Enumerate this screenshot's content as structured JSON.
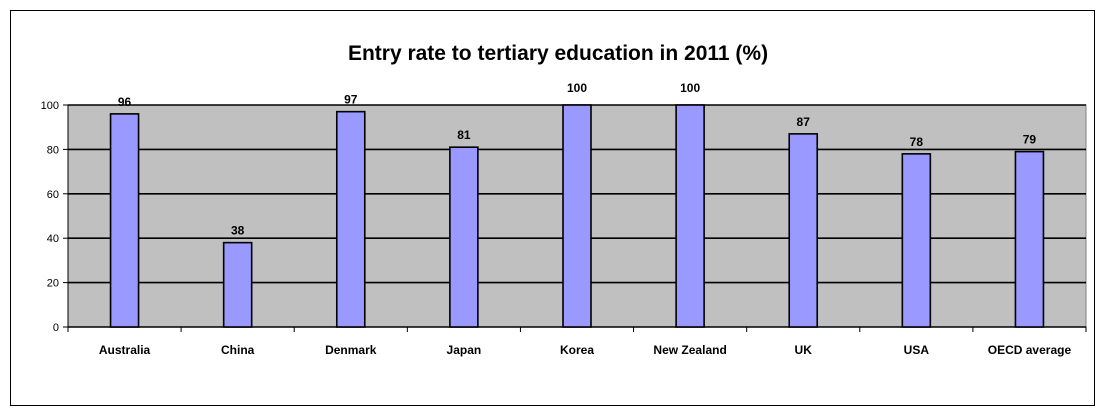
{
  "chart_data": {
    "type": "bar",
    "title": "Entry rate to tertiary education in 2011 (%)",
    "categories": [
      "Australia",
      "China",
      "Denmark",
      "Japan",
      "Korea",
      "New Zealand",
      "UK",
      "USA",
      "OECD average"
    ],
    "values": [
      96,
      38,
      97,
      81,
      100,
      100,
      87,
      78,
      79
    ],
    "data_labels": [
      "96",
      "38",
      "97",
      "81",
      "100",
      "100",
      "87",
      "78",
      "79"
    ],
    "yticks": [
      0,
      20,
      40,
      60,
      80,
      100
    ],
    "ylim": [
      0,
      100
    ],
    "grid": true,
    "legend": false,
    "colors": {
      "bar_fill": "#9999ff",
      "plot_background": "#c0c0c0",
      "grid": "#000000",
      "bar_stroke": "#000000"
    }
  }
}
